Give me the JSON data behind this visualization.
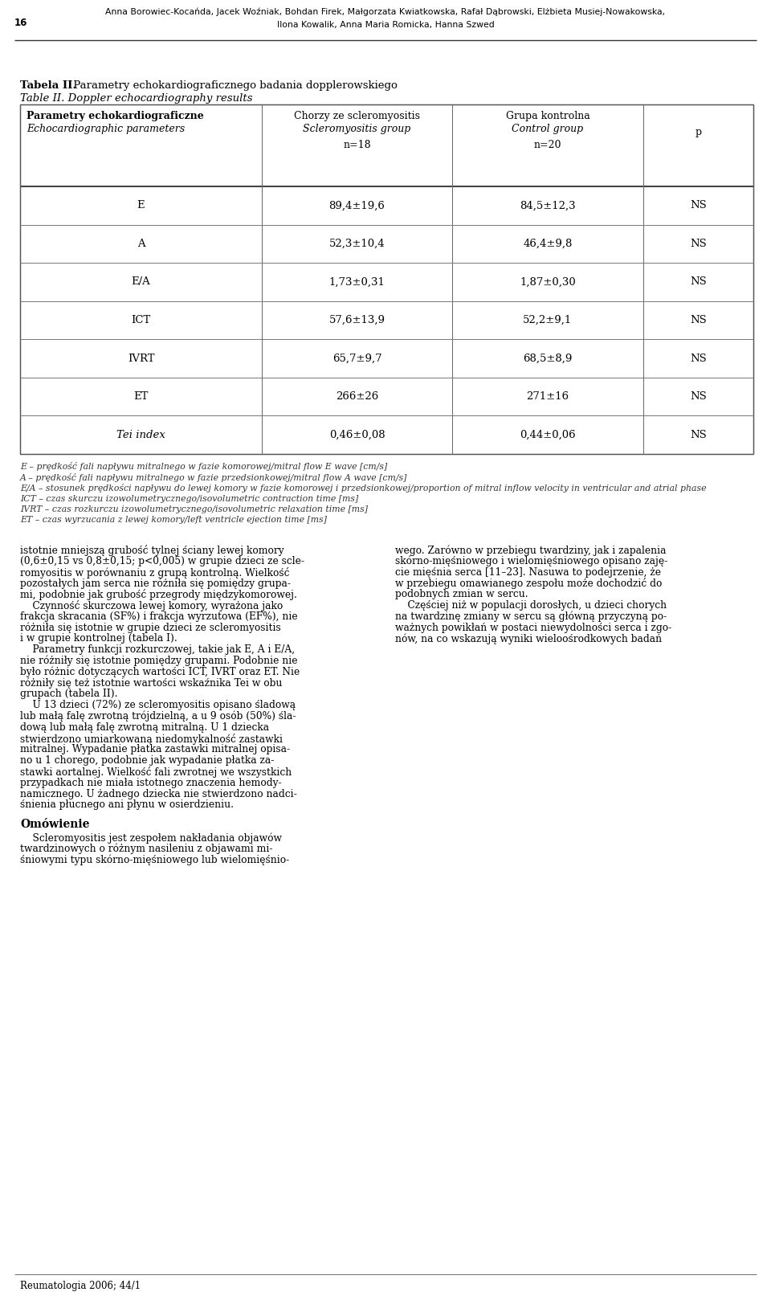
{
  "page_number": "16",
  "header_line1": "Anna Borowiec-Kocańda, Jacek Woźniak, Bohdan Firek, Małgorzata Kwiatkowska, Rafał Dąbrowski, Elżbieta Musiej-Nowakowska,",
  "header_line2": "Ilona Kowalik, Anna Maria Romicka, Hanna Szwed",
  "title_bold_pl": "Tabela II.",
  "title_normal_pl": " Parametry echokardiograficznego badania dopplerowskiego",
  "title_italic_en": "Table II. Doppler echocardiography results",
  "col1_header_pl": "Parametry echokardiograficzne",
  "col1_header_en": "Echocardiographic parameters",
  "col2_header_pl": "Chorzy ze scleromyositis",
  "col2_header_en": "Scleromyositis group",
  "col2_n": "n=18",
  "col3_header_pl": "Grupa kontrolna",
  "col3_header_en": "Control group",
  "col3_n": "n=20",
  "col4_header": "p",
  "rows": [
    {
      "param": "E",
      "scleromyositis": "89,4±19,6",
      "control": "84,5±12,3",
      "p": "NS",
      "italic": false
    },
    {
      "param": "A",
      "scleromyositis": "52,3±10,4",
      "control": "46,4±9,8",
      "p": "NS",
      "italic": false
    },
    {
      "param": "E/A",
      "scleromyositis": "1,73±0,31",
      "control": "1,87±0,30",
      "p": "NS",
      "italic": false
    },
    {
      "param": "ICT",
      "scleromyositis": "57,6±13,9",
      "control": "52,2±9,1",
      "p": "NS",
      "italic": false
    },
    {
      "param": "IVRT",
      "scleromyositis": "65,7±9,7",
      "control": "68,5±8,9",
      "p": "NS",
      "italic": false
    },
    {
      "param": "ET",
      "scleromyositis": "266±26",
      "control": "271±16",
      "p": "NS",
      "italic": false
    },
    {
      "param": "Tei index",
      "scleromyositis": "0,46±0,08",
      "control": "0,44±0,06",
      "p": "NS",
      "italic": true
    }
  ],
  "footnotes": [
    "E – prędkość fali napływu mitralnego w fazie komorowej/mitral flow E wave [cm/s]",
    "A – prędkość fali napływu mitralnego w fazie przedsionkowej/mitral flow A wave [cm/s]",
    "E/A – stosunek prędkości napływu do lewej komory w fazie komorowej i przedsionkowej/proportion of mitral inflow velocity in ventricular and atrial phase",
    "ICT – czas skurczu izowolumetrycznego/isovolumetric contraction time [ms]",
    "IVRT – czas rozkurczu izowolumetrycznego/isovolumetric relaxation time [ms]",
    "ET – czas wyrzucania z lewej komory/left ventricle ejection time [ms]"
  ],
  "body_left_text": [
    "istotnie mniejszą grubość tylnej ściany lewej komory",
    "(0,6±0,15 vs 0,8±0,15; p<0,005) w grupie dzieci ze scle-",
    "romyositis w porównaniu z grupą kontrolną. Wielkość",
    "pozostałych jam serca nie różniła się pomiędzy grupa-",
    "mi, podobnie jak grubość przegrody międzykomorowej.",
    "    Czynność skurczowa lewej komory, wyrażona jako",
    "frakcja skracania (SF%) i frakcja wyrzutowa (EF%), nie",
    "różniła się istotnie w grupie dzieci ze scleromyositis",
    "i w grupie kontrolnej (tabela I).",
    "    Parametry funkcji rozkurczowej, takie jak E, A i E/A,",
    "nie różniły się istotnie pomiędzy grupami. Podobnie nie",
    "było różnic dotyczących wartości ICT, IVRT oraz ET. Nie",
    "różniły się też istotnie wartości wskaźnika Tei w obu",
    "grupach (tabela II).",
    "    U 13 dzieci (72%) ze scleromyositis opisano śladową",
    "lub małą falę zwrotną trójdzielną, a u 9 osób (50%) śla-",
    "dową lub małą falę zwrotną mitralną. U 1 dziecka",
    "stwierdzono umiarkowaną niedomykalność zastawki",
    "mitralnej. Wypadanie płatka zastawki mitralnej opisa-",
    "no u 1 chorego, podobnie jak wypadanie płatka za-",
    "stawki aortalnej. Wielkość fali zwrotnej we wszystkich",
    "przypadkach nie miała istotnego znaczenia hemody-",
    "namicznego. U żadnego dziecka nie stwierdzono nadci-",
    "śnienia płucnego ani płynu w osierdzieniu."
  ],
  "body_right_text": [
    "wego. Zarówno w przebiegu twardziny, jak i zapalenia",
    "skórno-mięśniowego i wielomięśniowego opisano zaję-",
    "cie mięśnia serca [11–23]. Nasuwa to podejrzenie, że",
    "w przebiegu omawianego zespołu może dochodzić do",
    "podobnych zmian w sercu.",
    "    Częściej niż w populacji dorosłych, u dzieci chorych",
    "na twardzinę zmiany w sercu są główną przyczyną po-",
    "ważnych powikłań w postaci niewydolności serca i zgo-",
    "nów, na co wskazują wyniki wieloośrodkowych badań"
  ],
  "omowienie_title": "Omówienie",
  "omowienie_text": [
    "    Scleromyositis jest zespołem nakładania objawów",
    "twardzinowych o różnym nasileniu z objawami mi-",
    "śniowymi typu skórno-mięśniowego lub wielomięśnio-"
  ],
  "footer": "Reumatologia 2006; 44/1",
  "bg_color": "#ffffff",
  "text_color": "#000000",
  "line_color": "#888888",
  "thick_line_color": "#555555"
}
